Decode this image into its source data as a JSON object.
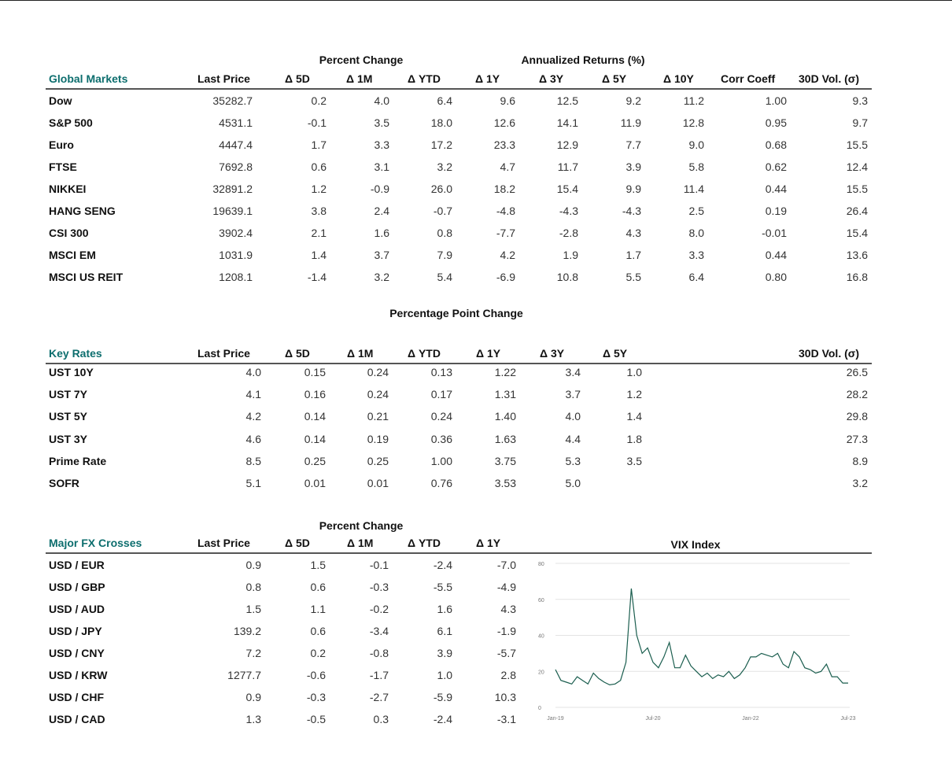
{
  "global_markets": {
    "title": "Global Markets",
    "group_headers": [
      "Percent Change",
      "Annualized Returns (%)"
    ],
    "columns": [
      "Last Price",
      "Δ 5D",
      "Δ 1M",
      "Δ YTD",
      "Δ 1Y",
      "Δ 3Y",
      "Δ 5Y",
      "Δ 10Y",
      "Corr Coeff",
      "30D Vol. (σ)"
    ],
    "rows": [
      {
        "name": "Dow",
        "values": [
          "35282.7",
          "0.2",
          "4.0",
          "6.4",
          "9.6",
          "12.5",
          "9.2",
          "11.2",
          "1.00",
          "9.3"
        ]
      },
      {
        "name": "S&P 500",
        "values": [
          "4531.1",
          "-0.1",
          "3.5",
          "18.0",
          "12.6",
          "14.1",
          "11.9",
          "12.8",
          "0.95",
          "9.7"
        ]
      },
      {
        "name": "Euro",
        "values": [
          "4447.4",
          "1.7",
          "3.3",
          "17.2",
          "23.3",
          "12.9",
          "7.7",
          "9.0",
          "0.68",
          "15.5"
        ]
      },
      {
        "name": "FTSE",
        "values": [
          "7692.8",
          "0.6",
          "3.1",
          "3.2",
          "4.7",
          "11.7",
          "3.9",
          "5.8",
          "0.62",
          "12.4"
        ]
      },
      {
        "name": "NIKKEI",
        "values": [
          "32891.2",
          "1.2",
          "-0.9",
          "26.0",
          "18.2",
          "15.4",
          "9.9",
          "11.4",
          "0.44",
          "15.5"
        ]
      },
      {
        "name": "HANG SENG",
        "values": [
          "19639.1",
          "3.8",
          "2.4",
          "-0.7",
          "-4.8",
          "-4.3",
          "-4.3",
          "2.5",
          "0.19",
          "26.4"
        ]
      },
      {
        "name": "CSI 300",
        "values": [
          "3902.4",
          "2.1",
          "1.6",
          "0.8",
          "-7.7",
          "-2.8",
          "4.3",
          "8.0",
          "-0.01",
          "15.4"
        ]
      },
      {
        "name": "MSCI EM",
        "values": [
          "1031.9",
          "1.4",
          "3.7",
          "7.9",
          "4.2",
          "1.9",
          "1.7",
          "3.3",
          "0.44",
          "13.6"
        ]
      },
      {
        "name": "MSCI US REIT",
        "values": [
          "1208.1",
          "-1.4",
          "3.2",
          "5.4",
          "-6.9",
          "10.8",
          "5.5",
          "6.4",
          "0.80",
          "16.8"
        ]
      }
    ]
  },
  "key_rates": {
    "title": "Key Rates",
    "group_headers": [
      "Percentage Point Change"
    ],
    "columns": [
      "Last Price",
      "Δ 5D",
      "Δ 1M",
      "Δ YTD",
      "Δ 1Y",
      "Δ 3Y",
      "Δ 5Y",
      "30D Vol. (σ)"
    ],
    "rows": [
      {
        "name": "UST 10Y",
        "values": [
          "4.0",
          "0.15",
          "0.24",
          "0.13",
          "1.22",
          "3.4",
          "1.0",
          "26.5"
        ]
      },
      {
        "name": "UST 7Y",
        "values": [
          "4.1",
          "0.16",
          "0.24",
          "0.17",
          "1.31",
          "3.7",
          "1.2",
          "28.2"
        ]
      },
      {
        "name": "UST 5Y",
        "values": [
          "4.2",
          "0.14",
          "0.21",
          "0.24",
          "1.40",
          "4.0",
          "1.4",
          "29.8"
        ]
      },
      {
        "name": "UST 3Y",
        "values": [
          "4.6",
          "0.14",
          "0.19",
          "0.36",
          "1.63",
          "4.4",
          "1.8",
          "27.3"
        ]
      },
      {
        "name": "Prime Rate",
        "values": [
          "8.5",
          "0.25",
          "0.25",
          "1.00",
          "3.75",
          "5.3",
          "3.5",
          "8.9"
        ]
      },
      {
        "name": "SOFR",
        "values": [
          "5.1",
          "0.01",
          "0.01",
          "0.76",
          "3.53",
          "5.0",
          "",
          "3.2"
        ]
      }
    ]
  },
  "fx": {
    "title": "Major FX Crosses",
    "group_headers": [
      "Percent Change"
    ],
    "columns": [
      "Last Price",
      "Δ 5D",
      "Δ 1M",
      "Δ YTD",
      "Δ 1Y"
    ],
    "rows": [
      {
        "name": "USD / EUR",
        "values": [
          "0.9",
          "1.5",
          "-0.1",
          "-2.4",
          "-7.0"
        ]
      },
      {
        "name": "USD / GBP",
        "values": [
          "0.8",
          "0.6",
          "-0.3",
          "-5.5",
          "-4.9"
        ]
      },
      {
        "name": "USD / AUD",
        "values": [
          "1.5",
          "1.1",
          "-0.2",
          "1.6",
          "4.3"
        ]
      },
      {
        "name": "USD / JPY",
        "values": [
          "139.2",
          "0.6",
          "-3.4",
          "6.1",
          "-1.9"
        ]
      },
      {
        "name": "USD / CNY",
        "values": [
          "7.2",
          "0.2",
          "-0.8",
          "3.9",
          "-5.7"
        ]
      },
      {
        "name": "USD / KRW",
        "values": [
          "1277.7",
          "-0.6",
          "-1.7",
          "1.0",
          "2.8"
        ]
      },
      {
        "name": "USD / CHF",
        "values": [
          "0.9",
          "-0.3",
          "-2.7",
          "-5.9",
          "10.3"
        ]
      },
      {
        "name": "USD / CAD",
        "values": [
          "1.3",
          "-0.5",
          "0.3",
          "-2.4",
          "-3.1"
        ]
      }
    ]
  },
  "colors": {
    "section_title": "#0d6e6e",
    "vix_line": "#1b5e4f",
    "grid": "#e3e3e3"
  },
  "chart_data": {
    "type": "line",
    "title": "VIX Index",
    "xlabel": "",
    "ylabel": "",
    "ylim": [
      0,
      80
    ],
    "yticks": [
      "0",
      "20",
      "40",
      "60",
      "80"
    ],
    "xticks": [
      "Jan-19",
      "Jul-20",
      "Jan-22",
      "Jul-23"
    ],
    "grid": true,
    "x": [
      "2019-01",
      "2019-02",
      "2019-03",
      "2019-04",
      "2019-05",
      "2019-06",
      "2019-07",
      "2019-08",
      "2019-09",
      "2019-10",
      "2019-11",
      "2019-12",
      "2020-01",
      "2020-02",
      "2020-03",
      "2020-04",
      "2020-05",
      "2020-06",
      "2020-07",
      "2020-08",
      "2020-09",
      "2020-10",
      "2020-11",
      "2020-12",
      "2021-01",
      "2021-02",
      "2021-03",
      "2021-04",
      "2021-05",
      "2021-06",
      "2021-07",
      "2021-08",
      "2021-09",
      "2021-10",
      "2021-11",
      "2021-12",
      "2022-01",
      "2022-02",
      "2022-03",
      "2022-04",
      "2022-05",
      "2022-06",
      "2022-07",
      "2022-08",
      "2022-09",
      "2022-10",
      "2022-11",
      "2022-12",
      "2023-01",
      "2023-02",
      "2023-03",
      "2023-04",
      "2023-05",
      "2023-06",
      "2023-07"
    ],
    "values": [
      21,
      15,
      14,
      13,
      17,
      15,
      13,
      19,
      16,
      14,
      12.5,
      13,
      15,
      25,
      66,
      40,
      30,
      33,
      25,
      22,
      28,
      36,
      22,
      22,
      29,
      23,
      20,
      17,
      19,
      16,
      18,
      17,
      20,
      16,
      18,
      22,
      28,
      28,
      30,
      29,
      28,
      30,
      24,
      22,
      31,
      28,
      22,
      21,
      19,
      20,
      24,
      17,
      17,
      13.5,
      13.5
    ]
  }
}
